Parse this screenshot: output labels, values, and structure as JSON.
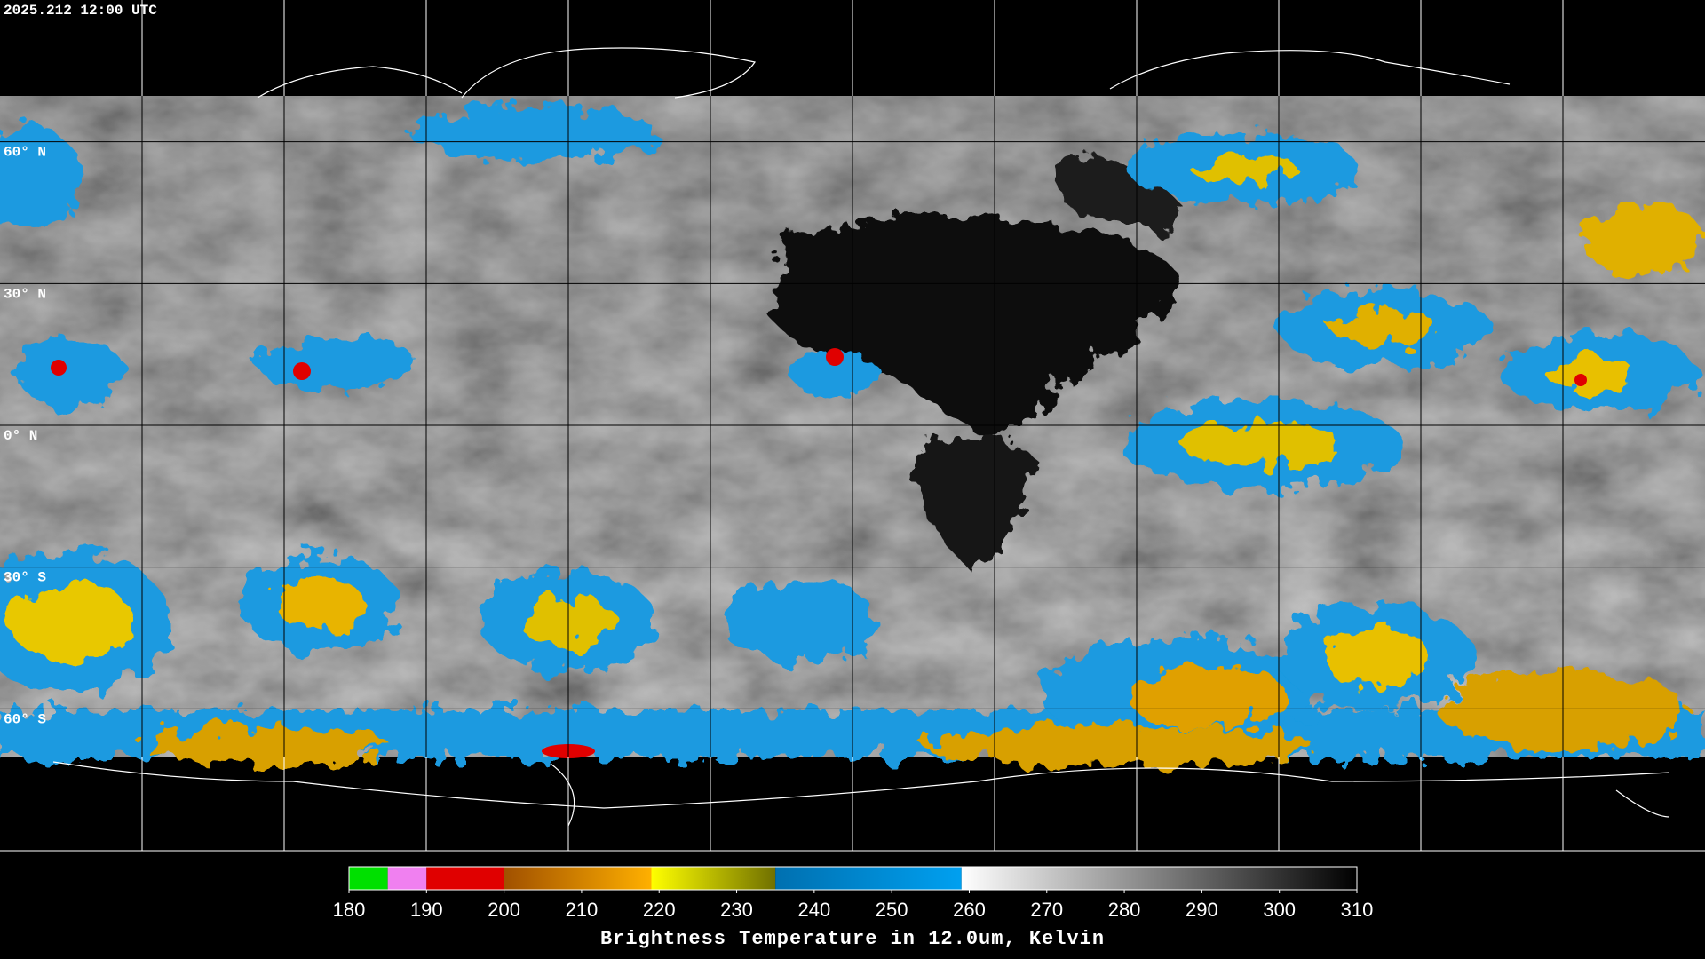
{
  "header": {
    "timestamp": "2025.212 12:00 UTC"
  },
  "map": {
    "latitudes": [
      {
        "value": 60,
        "label": "60° N"
      },
      {
        "value": 30,
        "label": "30° N"
      },
      {
        "value": 0,
        "label": "0° N"
      },
      {
        "value": -30,
        "label": "30° S"
      },
      {
        "value": -60,
        "label": "60° S"
      }
    ]
  },
  "colorbar": {
    "title": "Brightness Temperature in 12.0um, Kelvin",
    "range": [
      180,
      310
    ],
    "ticks": [
      180,
      190,
      200,
      210,
      220,
      230,
      240,
      250,
      260,
      270,
      280,
      290,
      300,
      310
    ],
    "segments": [
      {
        "from": 180,
        "to": 185,
        "colors": [
          "#00e000",
          "#00e000"
        ]
      },
      {
        "from": 185,
        "to": 190,
        "colors": [
          "#f080f0",
          "#f080f0"
        ]
      },
      {
        "from": 190,
        "to": 200,
        "colors": [
          "#e00000",
          "#e00000"
        ]
      },
      {
        "from": 200,
        "to": 219,
        "colors": [
          "#a05000",
          "#ffb000"
        ]
      },
      {
        "from": 219,
        "to": 235,
        "colors": [
          "#ffff00",
          "#707000"
        ]
      },
      {
        "from": 235,
        "to": 259,
        "colors": [
          "#0070b0",
          "#00a0f0"
        ]
      },
      {
        "from": 259,
        "to": 310,
        "colors": [
          "#ffffff",
          "#000000"
        ]
      }
    ]
  }
}
